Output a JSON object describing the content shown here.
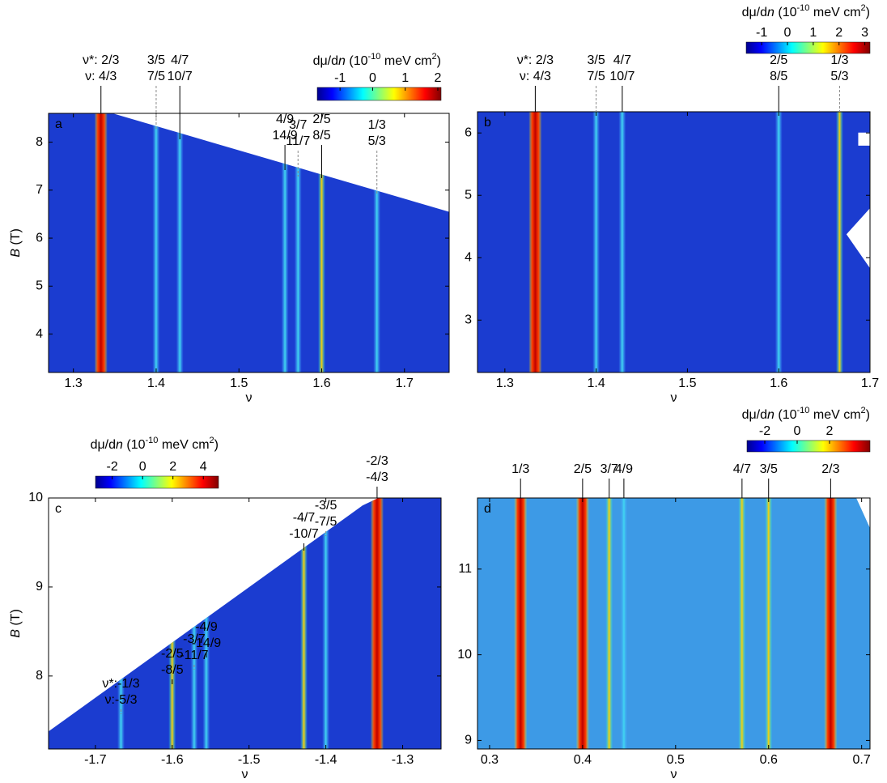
{
  "chart_data": [
    {
      "type": "heatmap",
      "panel": "a",
      "xlabel": "ν",
      "ylabel": [
        "B",
        " (T)"
      ],
      "xlim": [
        1.27,
        1.754
      ],
      "ylim": [
        3.2,
        8.6
      ],
      "xticks": [
        1.3,
        1.4,
        1.5,
        1.6,
        1.7
      ],
      "yticks": [
        4,
        5,
        6,
        7,
        8
      ],
      "colorbar": {
        "label": [
          "dμ/d",
          "n",
          " (10",
          "-10",
          " meV cm",
          "2",
          ")"
        ],
        "lim": [
          -1.7,
          2.1
        ],
        "ticks": [
          -1,
          0,
          1,
          2
        ]
      },
      "annotations": [
        {
          "x": 1.3333,
          "line": "solid",
          "labels": [
            {
              "text": "ν*: 2/3",
              "color": "#2222d6"
            },
            {
              "text": "ν: 4/3",
              "color": "#000000"
            }
          ]
        },
        {
          "x": 1.4,
          "line": "dashed",
          "labels": [
            {
              "text": "3/5",
              "color": "#2aa5da"
            },
            {
              "text": "7/5",
              "color": "#8c8c8c"
            }
          ]
        },
        {
          "x": 1.4286,
          "line": "solid",
          "labels": [
            {
              "text": "4/7",
              "color": "#2222d6"
            },
            {
              "text": "10/7",
              "color": "#000000"
            }
          ]
        },
        {
          "x": 1.5556,
          "line": "solid",
          "labels": [
            {
              "text": "4/9",
              "color": "#2222d6"
            },
            {
              "text": "14/9",
              "color": "#000000"
            }
          ]
        },
        {
          "x": 1.5714,
          "line": "dashed",
          "labels": [
            {
              "text": "3/7",
              "color": "#2aa5da"
            },
            {
              "text": "11/7",
              "color": "#8c8c8c"
            }
          ]
        },
        {
          "x": 1.6,
          "line": "solid",
          "labels": [
            {
              "text": "2/5",
              "color": "#2222d6"
            },
            {
              "text": "8/5",
              "color": "#000000"
            }
          ]
        },
        {
          "x": 1.6667,
          "line": "dashed",
          "labels": [
            {
              "text": "1/3",
              "color": "#2aa5da"
            },
            {
              "text": "5/3",
              "color": "#8c8c8c"
            }
          ]
        }
      ]
    },
    {
      "type": "heatmap",
      "panel": "b",
      "xlabel": "ν",
      "xlim": [
        1.27,
        1.7
      ],
      "ylim": [
        2.16,
        6.34
      ],
      "xticks": [
        1.3,
        1.4,
        1.5,
        1.6,
        1.7
      ],
      "yticks": [
        3,
        4,
        5,
        6
      ],
      "colorbar": {
        "label": [
          "dμ/d",
          "n",
          " (10",
          "-10",
          " meV cm",
          "2",
          ")"
        ],
        "lim": [
          -1.6,
          3.2
        ],
        "ticks": [
          -1,
          0,
          1,
          2,
          3
        ]
      },
      "annotations": [
        {
          "x": 1.3333,
          "line": "solid",
          "labels": [
            {
              "text": "ν*: 2/3",
              "color": "#2222d6"
            },
            {
              "text": "ν: 4/3",
              "color": "#000000"
            }
          ]
        },
        {
          "x": 1.4,
          "line": "dashed",
          "labels": [
            {
              "text": "3/5",
              "color": "#2aa5da"
            },
            {
              "text": "7/5",
              "color": "#8c8c8c"
            }
          ]
        },
        {
          "x": 1.4286,
          "line": "solid",
          "labels": [
            {
              "text": "4/7",
              "color": "#2222d6"
            },
            {
              "text": "10/7",
              "color": "#000000"
            }
          ]
        },
        {
          "x": 1.6,
          "line": "solid",
          "labels": [
            {
              "text": "2/5",
              "color": "#2222d6"
            },
            {
              "text": "8/5",
              "color": "#000000"
            }
          ]
        },
        {
          "x": 1.6667,
          "line": "dashed",
          "labels": [
            {
              "text": "1/3",
              "color": "#2aa5da"
            },
            {
              "text": "5/3",
              "color": "#8c8c8c"
            }
          ]
        }
      ]
    },
    {
      "type": "heatmap",
      "panel": "c",
      "xlabel": "ν",
      "ylabel": [
        "B",
        " (T)"
      ],
      "xlim": [
        -1.761,
        -1.25
      ],
      "ylim": [
        7.18,
        10
      ],
      "xticks": [
        -1.7,
        -1.6,
        -1.5,
        -1.4,
        -1.3
      ],
      "yticks": [
        8,
        9,
        10
      ],
      "colorbar": {
        "label": [
          "dμ/d",
          "n",
          " (10",
          "-10",
          " meV cm",
          "2",
          ")"
        ],
        "lim": [
          -3.1,
          5.0
        ],
        "ticks": [
          -2,
          0,
          2,
          4
        ]
      },
      "annotations": [
        {
          "x": -1.3333,
          "line": "solid",
          "labels": [
            {
              "text": "-2/3",
              "color": "#2222d6"
            },
            {
              "text": "-4/3",
              "color": "#000000"
            }
          ]
        },
        {
          "x": -1.4,
          "line": "dashed",
          "labels": [
            {
              "text": "-3/5",
              "color": "#2aa5da"
            },
            {
              "text": "-7/5",
              "color": "#8c8c8c"
            }
          ]
        },
        {
          "x": -1.4286,
          "line": "solid",
          "labels": [
            {
              "text": "-4/7",
              "color": "#2222d6"
            },
            {
              "text": "-10/7",
              "color": "#000000"
            }
          ]
        },
        {
          "x": -1.5556,
          "line": "solid",
          "labels": [
            {
              "text": "-4/9",
              "color": "#2222d6"
            },
            {
              "text": "-14/9",
              "color": "#000000"
            }
          ]
        },
        {
          "x": -1.5714,
          "line": "dashed",
          "labels": [
            {
              "text": "-3/7",
              "color": "#2aa5da"
            },
            {
              "text": "-11/7",
              "color": "#8c8c8c"
            }
          ]
        },
        {
          "x": -1.6,
          "line": "solid",
          "labels": [
            {
              "text": "-2/5",
              "color": "#2222d6"
            },
            {
              "text": "-8/5",
              "color": "#000000"
            }
          ]
        },
        {
          "x": -1.6667,
          "line": "dashed",
          "labels": [
            {
              "text": "ν*:-1/3",
              "color": "#2aa5da"
            },
            {
              "text": "ν:-5/3",
              "color": "#8c8c8c"
            }
          ]
        }
      ]
    },
    {
      "type": "heatmap",
      "panel": "d",
      "xlabel": "ν",
      "xlim": [
        0.287,
        0.709
      ],
      "ylim": [
        8.9,
        11.83
      ],
      "xticks": [
        0.3,
        0.4,
        0.5,
        0.6,
        0.7
      ],
      "yticks": [
        9,
        10,
        11
      ],
      "colorbar": {
        "label": [
          "dμ/d",
          "n",
          " (10",
          "-10",
          " meV cm",
          "2",
          ")"
        ],
        "lim": [
          -3.1,
          4.5
        ],
        "ticks": [
          -2,
          0,
          2
        ]
      },
      "annotations": [
        {
          "x": 0.3333,
          "line": "solid",
          "labels": [
            {
              "text": "1/3",
              "color": "#000000"
            }
          ]
        },
        {
          "x": 0.4,
          "line": "solid",
          "labels": [
            {
              "text": "2/5",
              "color": "#000000"
            }
          ]
        },
        {
          "x": 0.4286,
          "line": "solid",
          "labels": [
            {
              "text": "3/7",
              "color": "#000000"
            }
          ]
        },
        {
          "x": 0.4444,
          "line": "solid",
          "labels": [
            {
              "text": "4/9",
              "color": "#000000"
            }
          ]
        },
        {
          "x": 0.5714,
          "line": "solid",
          "labels": [
            {
              "text": "4/7",
              "color": "#000000"
            }
          ]
        },
        {
          "x": 0.6,
          "line": "solid",
          "labels": [
            {
              "text": "3/5",
              "color": "#000000"
            }
          ]
        },
        {
          "x": 0.6667,
          "line": "solid",
          "labels": [
            {
              "text": "2/3",
              "color": "#000000"
            }
          ]
        }
      ]
    }
  ]
}
